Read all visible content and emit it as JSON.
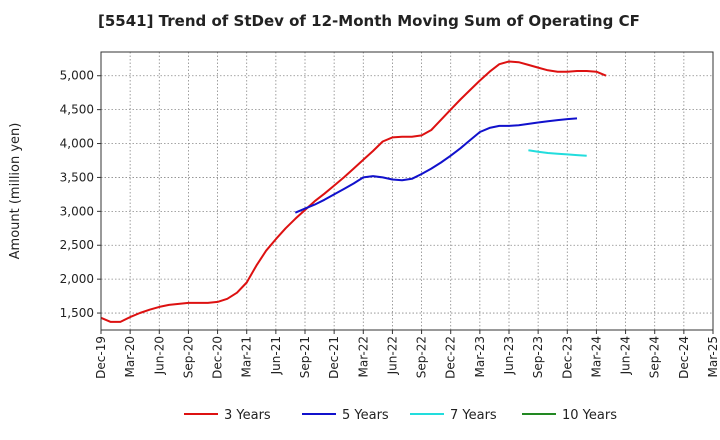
{
  "chart_data": {
    "type": "line",
    "title": "[5541]  Trend of StDev of 12-Month Moving Sum of Operating CF",
    "ylabel": "Amount (million yen)",
    "xlabel": "",
    "ylim": [
      1250,
      5350
    ],
    "yticks": [
      1500,
      2000,
      2500,
      3000,
      3500,
      4000,
      4500,
      5000
    ],
    "ytick_labels": [
      "1,500",
      "2,000",
      "2,500",
      "3,000",
      "3,500",
      "4,000",
      "4,500",
      "5,000"
    ],
    "xticks": [
      "Dec-19",
      "Mar-20",
      "Jun-20",
      "Sep-20",
      "Dec-20",
      "Mar-21",
      "Jun-21",
      "Sep-21",
      "Dec-21",
      "Mar-22",
      "Jun-22",
      "Sep-22",
      "Dec-22",
      "Mar-23",
      "Jun-23",
      "Sep-23",
      "Dec-23",
      "Mar-24",
      "Jun-24",
      "Sep-24",
      "Dec-24",
      "Mar-25"
    ],
    "grid": true,
    "legend_position": "bottom",
    "series": [
      {
        "name": "3 Years",
        "color": "#dd1111",
        "start": "2019-12",
        "values": [
          1430,
          1370,
          1370,
          1440,
          1500,
          1550,
          1590,
          1620,
          1635,
          1650,
          1650,
          1650,
          1665,
          1710,
          1800,
          1950,
          2200,
          2420,
          2590,
          2750,
          2890,
          3020,
          3150,
          3260,
          3380,
          3500,
          3630,
          3760,
          3890,
          4030,
          4090,
          4100,
          4100,
          4120,
          4200,
          4350,
          4500,
          4650,
          4790,
          4930,
          5060,
          5170,
          5210,
          5200,
          5160,
          5120,
          5080,
          5060,
          5060,
          5070,
          5070,
          5060,
          5000
        ]
      },
      {
        "name": "5 Years",
        "color": "#1111cc",
        "start": "2021-08",
        "values": [
          2980,
          3040,
          3100,
          3170,
          3250,
          3330,
          3410,
          3500,
          3520,
          3500,
          3470,
          3460,
          3480,
          3550,
          3630,
          3720,
          3820,
          3930,
          4050,
          4170,
          4230,
          4260,
          4260,
          4270,
          4290,
          4310,
          4330,
          4345,
          4360,
          4370
        ]
      },
      {
        "name": "7 Years",
        "color": "#22dddd",
        "start": "2023-08",
        "values": [
          3900,
          3880,
          3860,
          3850,
          3840,
          3830,
          3820
        ]
      },
      {
        "name": "10 Years",
        "color": "#228822",
        "start": "2023-08",
        "values": []
      }
    ]
  }
}
